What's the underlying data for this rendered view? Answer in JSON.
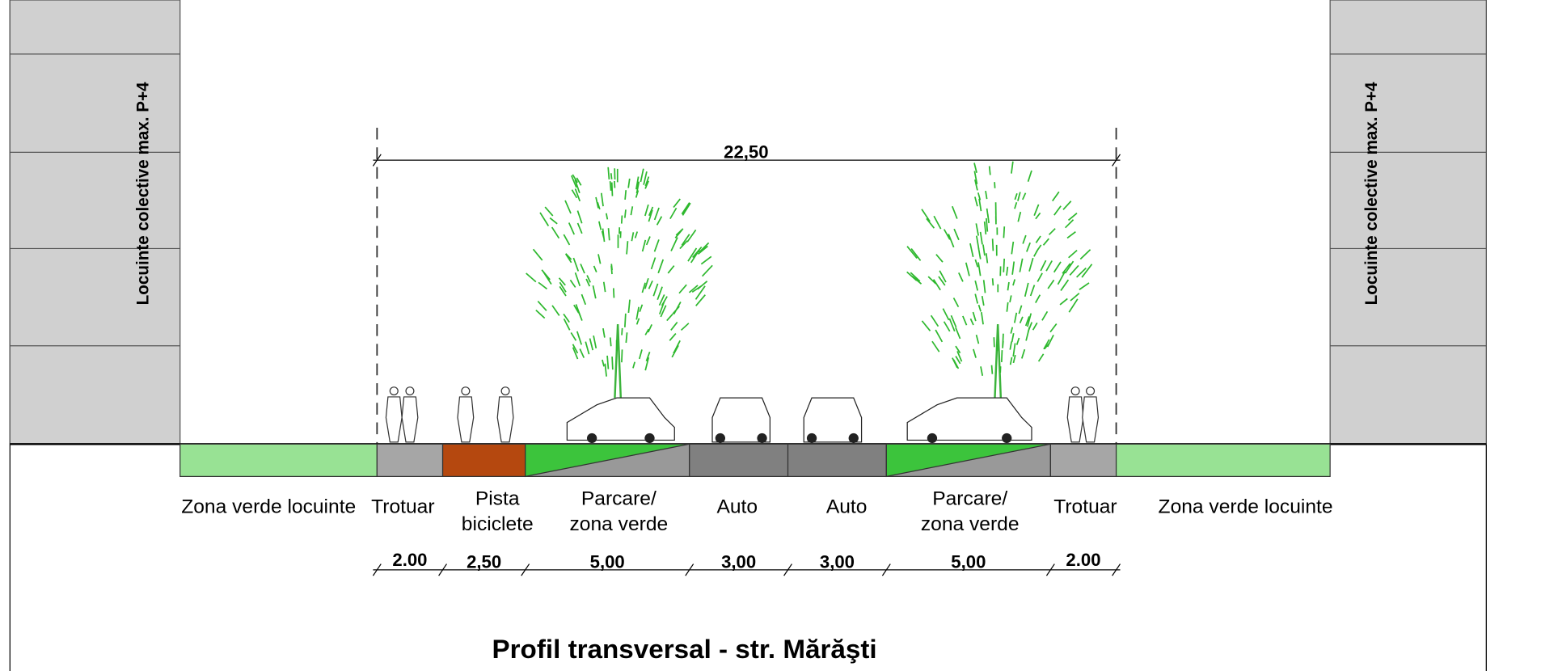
{
  "buildings": {
    "left": "Locuinte colective max. P+4",
    "right": "Locuinte colective max. P+4"
  },
  "total_width": "22,50",
  "segments": [
    {
      "label": [
        "Zona verde locuinte"
      ]
    },
    {
      "label": [
        "Trotuar"
      ],
      "width": "2.00"
    },
    {
      "label": [
        "Pista",
        "biciclete"
      ],
      "width": "2,50"
    },
    {
      "label": [
        "Parcare/",
        "zona verde"
      ],
      "width": "5,00"
    },
    {
      "label": [
        "Auto"
      ],
      "width": "3,00"
    },
    {
      "label": [
        "Auto"
      ],
      "width": "3,00"
    },
    {
      "label": [
        "Parcare/",
        "zona verde"
      ],
      "width": "5,00"
    },
    {
      "label": [
        "Trotuar"
      ],
      "width": "2.00"
    },
    {
      "label": [
        "Zona verde locuinte"
      ]
    }
  ],
  "title": "Profil transversal - str. Mărăşti"
}
